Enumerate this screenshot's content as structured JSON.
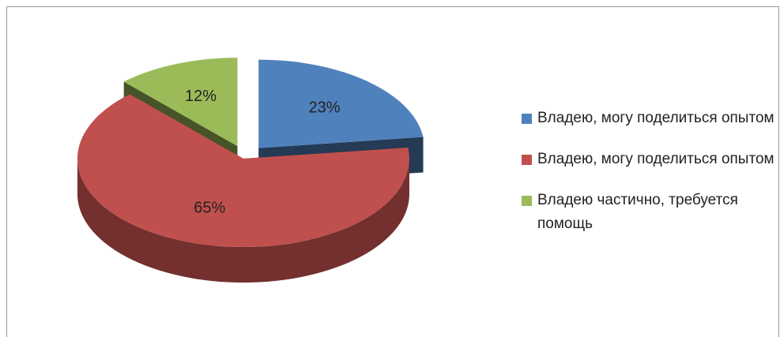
{
  "chart_data": {
    "type": "pie",
    "categories": [
      "Владею, могу поделиться опытом",
      "Владею, могу поделиться опытом",
      "Владею частично, требуется помощь"
    ],
    "values": [
      23,
      65,
      12
    ],
    "value_labels": [
      "23%",
      "65%",
      "12%"
    ],
    "colors": [
      "#4f81bd",
      "#c0504d",
      "#9bbb59"
    ],
    "legend": "right"
  }
}
